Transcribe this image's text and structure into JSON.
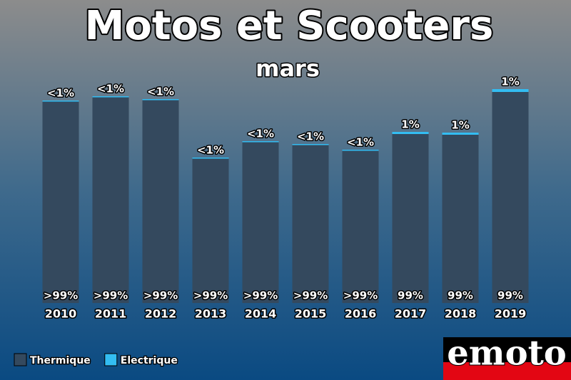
{
  "chart_data": {
    "type": "stacked_bar",
    "title": "Motos et Scooters",
    "subtitle": "mars",
    "categories": [
      "2010",
      "2011",
      "2012",
      "2013",
      "2014",
      "2015",
      "2016",
      "2017",
      "2018",
      "2019"
    ],
    "series": [
      {
        "name": "Thermique",
        "color": "#34495e",
        "values": [
          282.5,
          288.5,
          284.5,
          202.5,
          225.5,
          221.5,
          213.5,
          237,
          236,
          296
        ],
        "segment_labels": [
          ">99%",
          ">99%",
          ">99%",
          ">99%",
          ">99%",
          ">99%",
          ">99%",
          "99%",
          "99%",
          "99%"
        ]
      },
      {
        "name": "Electrique",
        "color": "#33bdf2",
        "values": [
          1.5,
          1.5,
          1.5,
          1.5,
          1.5,
          1.5,
          1.5,
          3,
          3,
          4
        ],
        "segment_labels": [
          "<1%",
          "<1%",
          "<1%",
          "<1%",
          "<1%",
          "<1%",
          "<1%",
          "1%",
          "1%",
          "1%"
        ]
      }
    ],
    "ylim": [
      0,
      300
    ],
    "logo": "emoto"
  }
}
